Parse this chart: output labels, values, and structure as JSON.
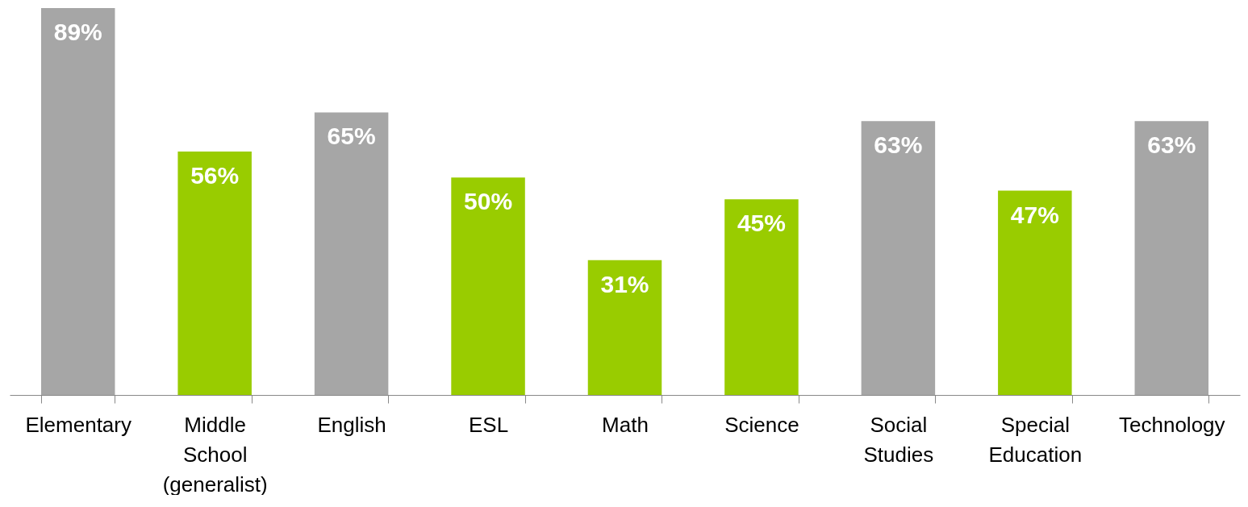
{
  "chart_data": {
    "type": "bar",
    "categories": [
      "Elementary",
      "Middle School (generalist)",
      "English",
      "ESL",
      "Math",
      "Science",
      "Social Studies",
      "Special Education",
      "Technology"
    ],
    "values": [
      89,
      56,
      65,
      50,
      31,
      45,
      63,
      47,
      63
    ],
    "colors": [
      "#a6a6a6",
      "#99cc00",
      "#a6a6a6",
      "#99cc00",
      "#99cc00",
      "#99cc00",
      "#a6a6a6",
      "#99cc00",
      "#a6a6a6"
    ],
    "value_labels": [
      "89%",
      "56%",
      "65%",
      "50%",
      "31%",
      "45%",
      "63%",
      "47%",
      "63%"
    ],
    "grid": false
  }
}
